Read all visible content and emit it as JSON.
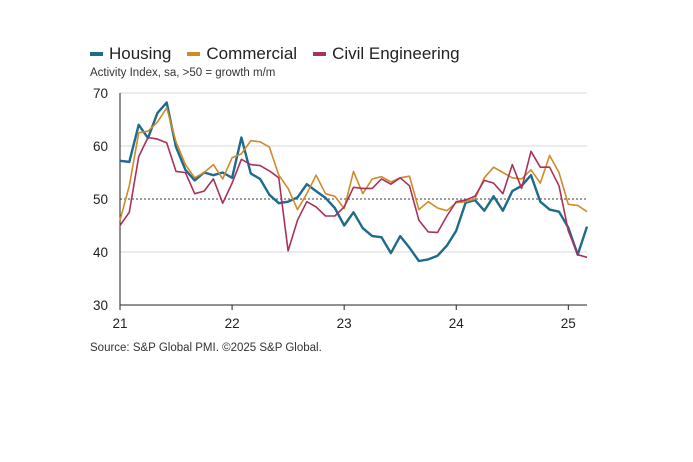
{
  "chart_data": {
    "type": "line",
    "title": "",
    "subtitle": "Activity Index, sa, >50 = growth m/m",
    "source": "Source: S&P Global PMI. ©2025 S&P Global.",
    "xlabel": "",
    "ylabel": "",
    "ylim": [
      30,
      70
    ],
    "yticks": [
      30,
      40,
      50,
      60,
      70
    ],
    "xticks": [
      "21",
      "22",
      "23",
      "24",
      "25"
    ],
    "x_start": "2021-01",
    "x_end": "2025-02",
    "reference_line": 50,
    "grid": "horizontal",
    "legend_position": "top-left",
    "series": [
      {
        "name": "Housing",
        "color": "#1e6b8c",
        "values": [
          57.2,
          57.0,
          64.0,
          61.5,
          66.2,
          68.2,
          59.8,
          55.5,
          53.5,
          55.0,
          54.5,
          55.0,
          54.0,
          61.6,
          54.8,
          53.8,
          50.8,
          49.2,
          49.5,
          50.3,
          52.8,
          51.5,
          50.2,
          48.3,
          45.0,
          47.5,
          44.5,
          43.0,
          42.8,
          39.8,
          43.0,
          40.8,
          38.3,
          38.6,
          39.3,
          41.2,
          44.0,
          49.3,
          49.8,
          47.8,
          50.5,
          47.8,
          51.5,
          52.5,
          54.5,
          49.5,
          48.0,
          47.6,
          44.6,
          39.5,
          44.8
        ]
      },
      {
        "name": "Commercial",
        "color": "#d08a2a",
        "values": [
          46.0,
          52.5,
          62.5,
          62.8,
          64.5,
          67.2,
          60.8,
          56.5,
          54.0,
          55.0,
          56.5,
          53.8,
          57.8,
          58.5,
          61.0,
          60.8,
          59.8,
          54.5,
          52.0,
          48.0,
          51.0,
          54.5,
          51.0,
          50.5,
          48.2,
          55.2,
          51.0,
          53.8,
          54.2,
          53.2,
          54.0,
          54.3,
          48.0,
          49.5,
          48.3,
          47.8,
          49.3,
          49.5,
          50.0,
          54.0,
          56.0,
          55.0,
          54.0,
          53.8,
          55.5,
          53.0,
          58.2,
          55.0,
          49.0,
          48.8,
          47.6
        ]
      },
      {
        "name": "Civil Engineering",
        "color": "#a8325a",
        "values": [
          45.0,
          47.5,
          58.0,
          61.6,
          61.3,
          60.6,
          55.2,
          55.0,
          51.0,
          51.5,
          53.8,
          49.2,
          53.0,
          57.5,
          56.5,
          56.3,
          55.3,
          54.0,
          40.2,
          46.0,
          49.5,
          48.5,
          46.8,
          46.8,
          48.5,
          52.2,
          52.0,
          52.0,
          53.8,
          52.8,
          54.0,
          52.5,
          46.0,
          43.8,
          43.7,
          46.8,
          49.5,
          49.8,
          50.5,
          53.5,
          53.0,
          51.0,
          56.5,
          52.0,
          59.0,
          56.0,
          56.0,
          52.5,
          44.0,
          39.5,
          39.0
        ]
      }
    ]
  }
}
